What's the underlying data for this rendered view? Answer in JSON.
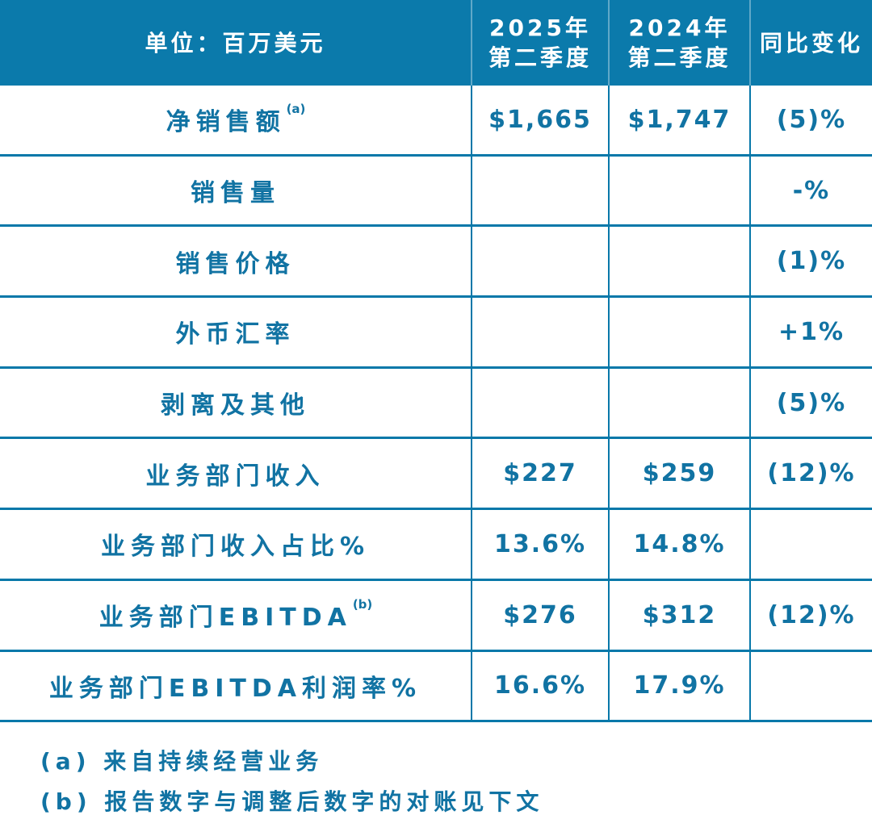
{
  "table": {
    "header": {
      "unit_label": "单位：百万美元",
      "col_2025_line1": "2025年",
      "col_2025_line2": "第二季度",
      "col_2024_line1": "2024年",
      "col_2024_line2": "第二季度",
      "yoy_label": "同比变化"
    },
    "rows": [
      {
        "label": "净销售额",
        "sup": "(a)",
        "v2025": "$1,665",
        "v2024": "$1,747",
        "yoy": "(5)%"
      },
      {
        "label": "销售量",
        "sup": "",
        "v2025": "",
        "v2024": "",
        "yoy": "-%"
      },
      {
        "label": "销售价格",
        "sup": "",
        "v2025": "",
        "v2024": "",
        "yoy": "(1)%"
      },
      {
        "label": "外币汇率",
        "sup": "",
        "v2025": "",
        "v2024": "",
        "yoy": "+1%"
      },
      {
        "label": "剥离及其他",
        "sup": "",
        "v2025": "",
        "v2024": "",
        "yoy": "(5)%"
      },
      {
        "label": "业务部门收入",
        "sup": "",
        "v2025": "$227",
        "v2024": "$259",
        "yoy": "(12)%"
      },
      {
        "label": "业务部门收入占比%",
        "sup": "",
        "v2025": "13.6%",
        "v2024": "14.8%",
        "yoy": ""
      },
      {
        "label": "业务部门EBITDA",
        "sup": "(b)",
        "v2025": "$276",
        "v2024": "$312",
        "yoy": "(12)%"
      },
      {
        "label": "业务部门EBITDA利润率%",
        "sup": "",
        "v2025": "16.6%",
        "v2024": "17.9%",
        "yoy": ""
      }
    ],
    "footnotes": [
      "(a) 来自持续经营业务",
      "(b) 报告数字与调整后数字的对账见下文"
    ]
  },
  "colors": {
    "header_bg": "#0b7aab",
    "grid_line": "#0778a9",
    "text_blue": "#1173a3",
    "header_text": "#ffffff"
  },
  "chart_data": {
    "type": "table",
    "title": "单位：百万美元",
    "columns": [
      "单位：百万美元",
      "2025年第二季度",
      "2024年第二季度",
      "同比变化"
    ],
    "rows": [
      [
        "净销售额(a)",
        "$1,665",
        "$1,747",
        "(5)%"
      ],
      [
        "销售量",
        "",
        "",
        "-%"
      ],
      [
        "销售价格",
        "",
        "",
        "(1)%"
      ],
      [
        "外币汇率",
        "",
        "",
        "+1%"
      ],
      [
        "剥离及其他",
        "",
        "",
        "(5)%"
      ],
      [
        "业务部门收入",
        "$227",
        "$259",
        "(12)%"
      ],
      [
        "业务部门收入占比%",
        "13.6%",
        "14.8%",
        ""
      ],
      [
        "业务部门EBITDA(b)",
        "$276",
        "$312",
        "(12)%"
      ],
      [
        "业务部门EBITDA利润率%",
        "16.6%",
        "17.9%",
        ""
      ]
    ],
    "footnotes": [
      "(a) 来自持续经营业务",
      "(b) 报告数字与调整后数字的对账见下文"
    ]
  }
}
